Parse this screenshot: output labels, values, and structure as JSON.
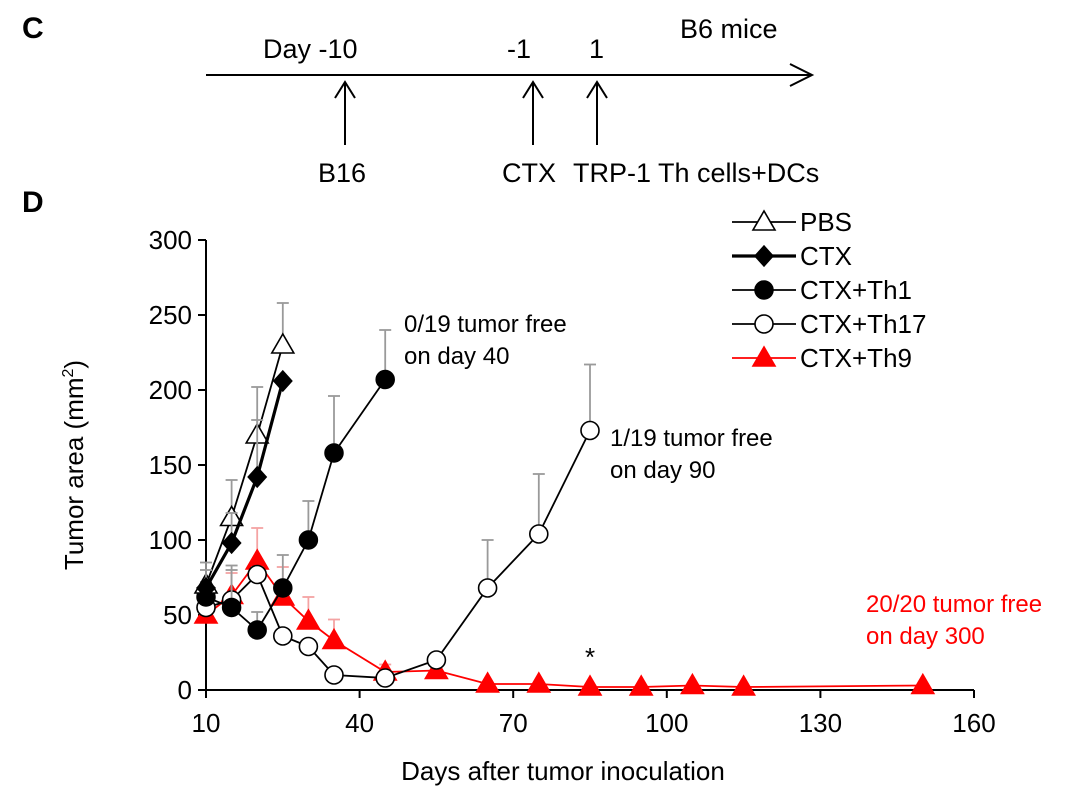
{
  "panels": {
    "c_letter": "C",
    "d_letter": "D"
  },
  "timeline": {
    "title": "B6 mice",
    "markers": [
      {
        "top_label": "Day -10",
        "bottom_label": "B16",
        "day": -10
      },
      {
        "top_label": "-1",
        "bottom_label": "CTX",
        "day": -1
      },
      {
        "top_label": "1",
        "bottom_label": "TRP-1 Th cells+DCs",
        "day": 1
      }
    ]
  },
  "colors": {
    "black": "#000000",
    "red": "#ff0000",
    "error_red": "#f4a3a3",
    "error_gray": "#9a9a9a"
  },
  "chart_data": {
    "type": "line",
    "title": "",
    "xlabel": "Days after tumor inoculation",
    "ylabel": "Tumor area (mm",
    "ylabel_sup": "2",
    "ylabel_close": ")",
    "xlim": [
      10,
      160
    ],
    "ylim": [
      0,
      300
    ],
    "xticks": [
      10,
      40,
      70,
      100,
      130,
      160
    ],
    "yticks": [
      0,
      50,
      100,
      150,
      200,
      250,
      300
    ],
    "legend_position": "top-right",
    "series": [
      {
        "name": "PBS",
        "marker": "open-triangle",
        "color": "#000000",
        "line_width": "normal",
        "x": [
          10,
          15,
          20,
          25
        ],
        "y": [
          70,
          115,
          170,
          230
        ],
        "err": [
          15,
          25,
          32,
          28
        ]
      },
      {
        "name": "CTX",
        "marker": "filled-diamond",
        "color": "#000000",
        "line_width": "bold",
        "x": [
          10,
          15,
          20,
          25
        ],
        "y": [
          68,
          98,
          142,
          206
        ],
        "err": [
          12,
          20,
          38,
          0
        ]
      },
      {
        "name": "CTX+Th1",
        "marker": "filled-circle",
        "color": "#000000",
        "line_width": "normal",
        "x": [
          10,
          15,
          20,
          25,
          30,
          35,
          45
        ],
        "y": [
          62,
          55,
          40,
          68,
          100,
          158,
          207
        ],
        "err": [
          10,
          28,
          12,
          22,
          26,
          38,
          33
        ]
      },
      {
        "name": "CTX+Th17",
        "marker": "open-circle",
        "color": "#000000",
        "line_width": "normal",
        "x": [
          10,
          15,
          20,
          25,
          30,
          35,
          45,
          55,
          65,
          75,
          85
        ],
        "y": [
          55,
          60,
          77,
          36,
          29,
          10,
          8,
          20,
          68,
          104,
          173
        ],
        "err": [
          0,
          20,
          5,
          0,
          0,
          0,
          0,
          0,
          32,
          40,
          44
        ]
      },
      {
        "name": "CTX+Th9",
        "marker": "filled-triangle",
        "color": "#ff0000",
        "line_width": "normal",
        "x": [
          10,
          15,
          20,
          25,
          30,
          35,
          45,
          55,
          65,
          75,
          85,
          95,
          105,
          115,
          150
        ],
        "y": [
          50,
          63,
          86,
          62,
          46,
          33,
          12,
          13,
          4,
          4,
          2,
          2,
          3,
          2,
          3
        ],
        "err": [
          6,
          15,
          22,
          20,
          16,
          14,
          5,
          5,
          0,
          0,
          0,
          0,
          0,
          0,
          0
        ]
      }
    ],
    "annotations": [
      {
        "id": "th1",
        "lines": [
          "0/19 tumor free",
          "on day 40"
        ],
        "color": "#000000"
      },
      {
        "id": "th17",
        "lines": [
          "1/19 tumor free",
          "on day 90"
        ],
        "color": "#000000"
      },
      {
        "id": "th9",
        "lines": [
          "20/20 tumor free",
          "on day 300"
        ],
        "color": "#ff0000"
      },
      {
        "id": "star",
        "lines": [
          "*"
        ],
        "color": "#000000",
        "x": 85
      }
    ]
  }
}
